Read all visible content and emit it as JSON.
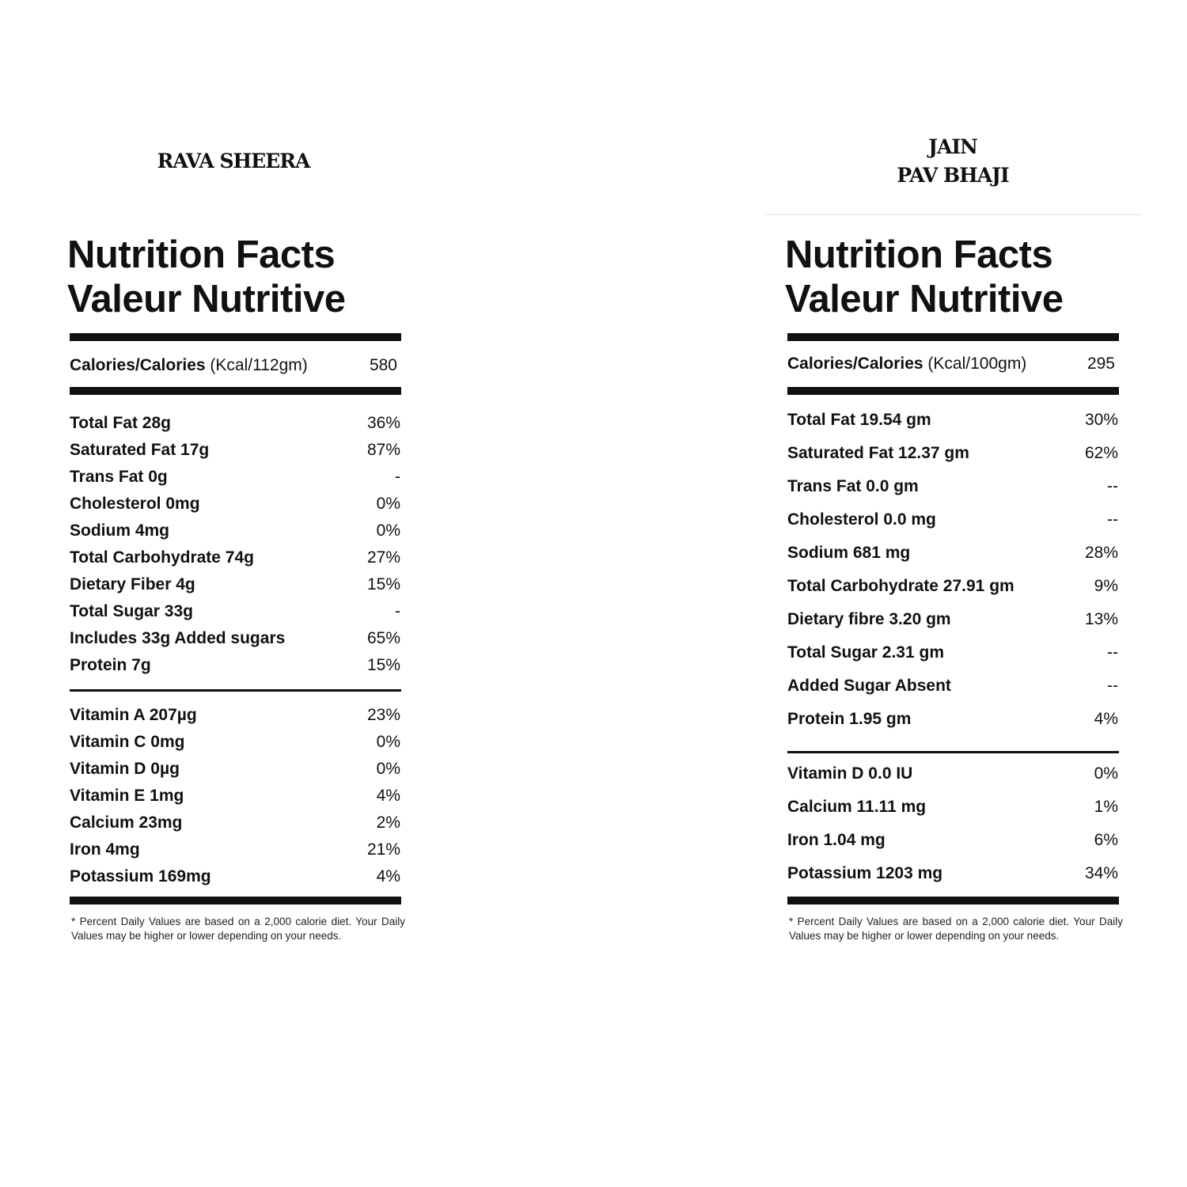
{
  "panels": [
    {
      "product": "RAVA SHEERA",
      "title_en": "Nutrition Facts",
      "title_fr": "Valeur Nutritive",
      "calories_label": "Calories/Calories",
      "calories_unit": "(Kcal/112gm)",
      "calories_value": "580",
      "nutrients": [
        {
          "label": "Total Fat 28g",
          "dv": "36%"
        },
        {
          "label": "Saturated Fat 17g",
          "dv": "87%"
        },
        {
          "label": "Trans Fat 0g",
          "dv": "-"
        },
        {
          "label": "Cholesterol 0mg",
          "dv": "0%"
        },
        {
          "label": "Sodium 4mg",
          "dv": "0%"
        },
        {
          "label": "Total Carbohydrate 74g",
          "dv": "27%"
        },
        {
          "label": "Dietary Fiber 4g",
          "dv": "15%"
        },
        {
          "label": "Total Sugar 33g",
          "dv": "-"
        },
        {
          "label": "Includes 33g Added sugars",
          "dv": "65%"
        },
        {
          "label": "Protein 7g",
          "dv": "15%"
        }
      ],
      "vitamins": [
        {
          "label": "Vitamin A 207µg",
          "dv": "23%"
        },
        {
          "label": "Vitamin C 0mg",
          "dv": "0%"
        },
        {
          "label": "Vitamin D 0µg",
          "dv": "0%"
        },
        {
          "label": "Vitamin E 1mg",
          "dv": "4%"
        },
        {
          "label": "Calcium 23mg",
          "dv": "2%"
        },
        {
          "label": "Iron 4mg",
          "dv": "21%"
        },
        {
          "label": "Potassium 169mg",
          "dv": "4%"
        }
      ],
      "footnote": "* Percent Daily Values are based on a 2,000 calorie diet. Your Daily Values may be higher or lower depending on your needs."
    },
    {
      "product": "JAIN\nPAV BHAJI",
      "title_en": "Nutrition Facts",
      "title_fr": "Valeur Nutritive",
      "calories_label": "Calories/Calories",
      "calories_unit": "(Kcal/100gm)",
      "calories_value": "295",
      "nutrients": [
        {
          "label": "Total Fat 19.54 gm",
          "dv": "30%"
        },
        {
          "label": "Saturated Fat 12.37 gm",
          "dv": "62%"
        },
        {
          "label": "Trans Fat 0.0 gm",
          "dv": "--"
        },
        {
          "label": "Cholesterol 0.0 mg",
          "dv": "--"
        },
        {
          "label": "Sodium 681 mg",
          "dv": "28%"
        },
        {
          "label": "Total Carbohydrate 27.91 gm",
          "dv": "9%"
        },
        {
          "label": "Dietary fibre 3.20 gm",
          "dv": "13%"
        },
        {
          "label": "Total Sugar 2.31 gm",
          "dv": "--"
        },
        {
          "label": "Added Sugar Absent",
          "dv": "--"
        },
        {
          "label": "Protein 1.95 gm",
          "dv": "4%"
        }
      ],
      "vitamins": [
        {
          "label": "Vitamin D 0.0 IU",
          "dv": "0%"
        },
        {
          "label": "Calcium 11.11 mg",
          "dv": "1%"
        },
        {
          "label": "Iron 1.04 mg",
          "dv": "6%"
        },
        {
          "label": "Potassium 1203 mg",
          "dv": "34%"
        }
      ],
      "footnote": "* Percent Daily Values are based on a 2,000 calorie diet. Your Daily Values may be higher or lower depending on your needs."
    }
  ]
}
